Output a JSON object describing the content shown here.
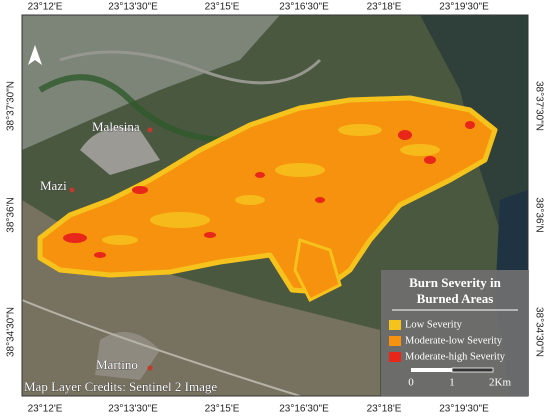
{
  "map": {
    "top_labels": [
      "23°12'E",
      "23°13'30\"E",
      "23°15'E",
      "23°16'30\"E",
      "23°18'E",
      "23°19'30\"E"
    ],
    "bottom_labels": [
      "23°12'E",
      "23°13'30\"E",
      "23°15'E",
      "23°16'30\"E",
      "23°18'E",
      "23°19'30\"E"
    ],
    "left_labels": [
      "38°37'30\"N",
      "38°36'N",
      "38°34'30\"N"
    ],
    "right_labels": [
      "38°37'30\"N",
      "38°36'N",
      "38°34'30\"N"
    ],
    "places": [
      "Malesina",
      "Mazi",
      "Martino"
    ],
    "legend": {
      "title_lines": [
        "Burn Severity in",
        "Burned Areas"
      ],
      "items": [
        {
          "label": "Low Severity",
          "color": "#f6c21c"
        },
        {
          "label": "Moderate-low Severity",
          "color": "#f7920f"
        },
        {
          "label": "Moderate-high Severity",
          "color": "#e8261a"
        }
      ]
    },
    "scale_labels": [
      "0",
      "1",
      "2Km"
    ],
    "credits": "Map Layer Credits: Sentinel 2 Image"
  }
}
